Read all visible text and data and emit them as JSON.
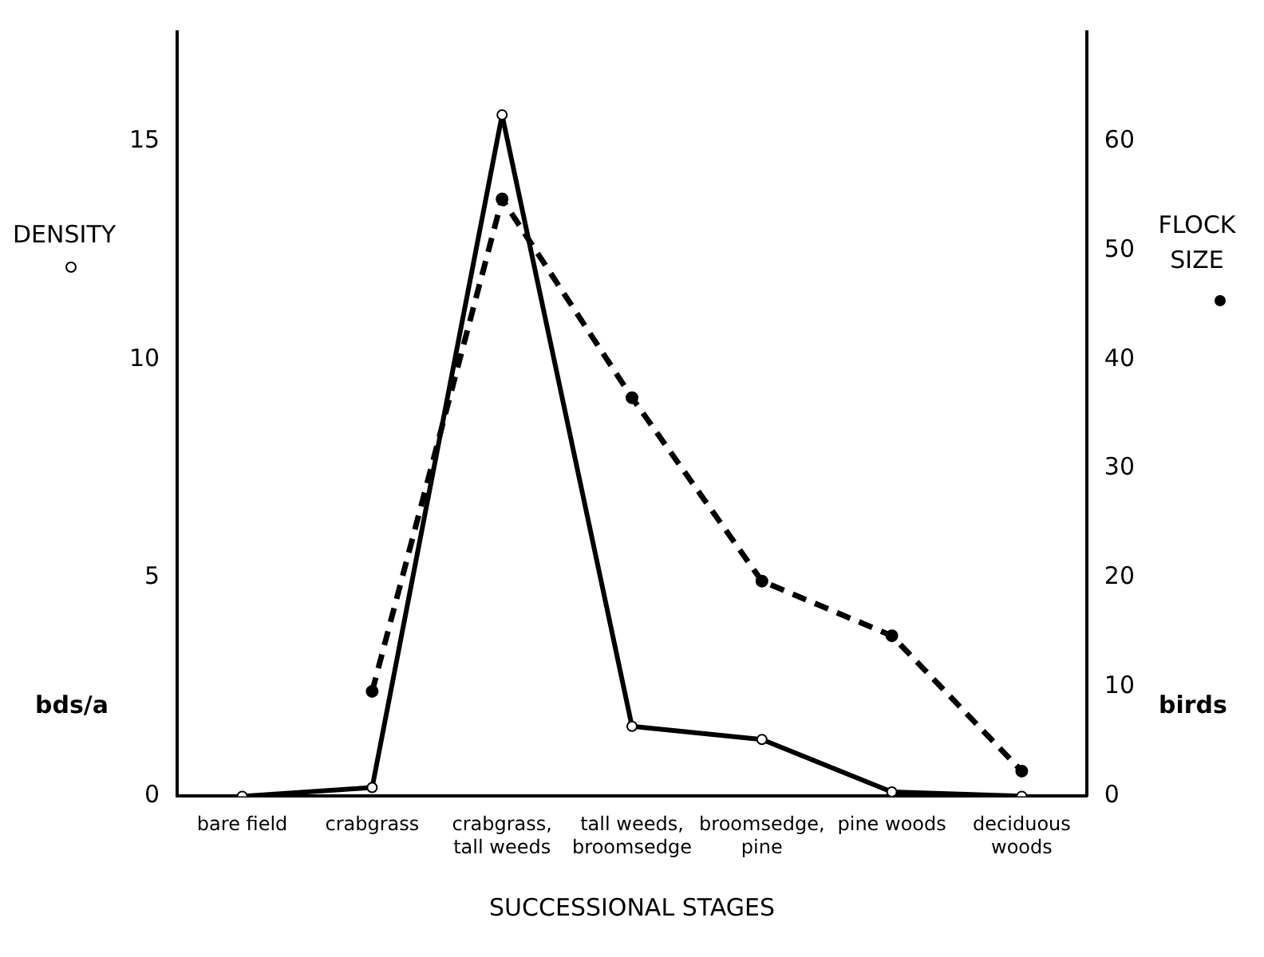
{
  "chart_data": {
    "type": "line",
    "xlabel": "SUCCESSIONAL STAGES",
    "ylabel": "DENSITY",
    "y2label": "FLOCK SIZE",
    "annotations": [
      "bds/a",
      "birds"
    ],
    "categories": [
      "bare field",
      "crabgrass",
      "crabgrass, tall weeds",
      "tall weeds, broomsedge",
      "broomsedge, pine",
      "pine woods",
      "deciduous woods"
    ],
    "series": [
      {
        "color": "#000000",
        "marker": "circle",
        "line_style": "solid",
        "values": [
          0,
          0.2,
          15.6,
          1.6,
          1.3,
          0.1,
          0
        ]
      },
      {
        "color": "#000000",
        "marker": "circle",
        "line_style": "dashed",
        "axis": "y2",
        "values": [
          null,
          9.6,
          54.7,
          36.5,
          19.7,
          14.7,
          2.3
        ]
      }
    ],
    "ylim": [
      0,
      17.5
    ],
    "yticks": [
      0,
      5,
      10,
      15
    ],
    "y2lim": [
      0,
      70
    ],
    "y2ticks": [
      0,
      10,
      20,
      30,
      40,
      50,
      60
    ],
    "grid": false,
    "legend": false
  }
}
